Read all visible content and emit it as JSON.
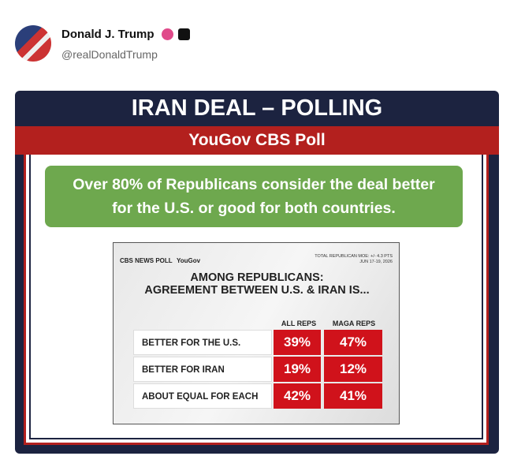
{
  "post": {
    "author": "Donald J. Trump",
    "handle": "@realDonaldTrump"
  },
  "image": {
    "title": "IRAN DEAL – POLLING",
    "subtitle": "YouGov CBS Poll",
    "callout": [
      "Over 80% of Republicans consider the deal better",
      "for the U.S. or good for both countries."
    ],
    "poll": {
      "brand": "CBS NEWS POLL",
      "partner": "YouGov",
      "moe": "TOTAL REPUBLICAN MOE: +/- 4.3 PTS",
      "date": "JUN 17-19, 2026",
      "heading": [
        "AMONG REPUBLICANS:",
        "AGREEMENT BETWEEN U.S. & IRAN IS..."
      ],
      "columns": [
        "ALL REPS",
        "MAGA REPS"
      ],
      "rows": [
        [
          "BETTER FOR THE U.S.",
          "39%",
          "47%"
        ],
        [
          "BETTER FOR IRAN",
          "19%",
          "12%"
        ],
        [
          "ABOUT EQUAL FOR EACH",
          "42%",
          "41%"
        ]
      ]
    }
  }
}
